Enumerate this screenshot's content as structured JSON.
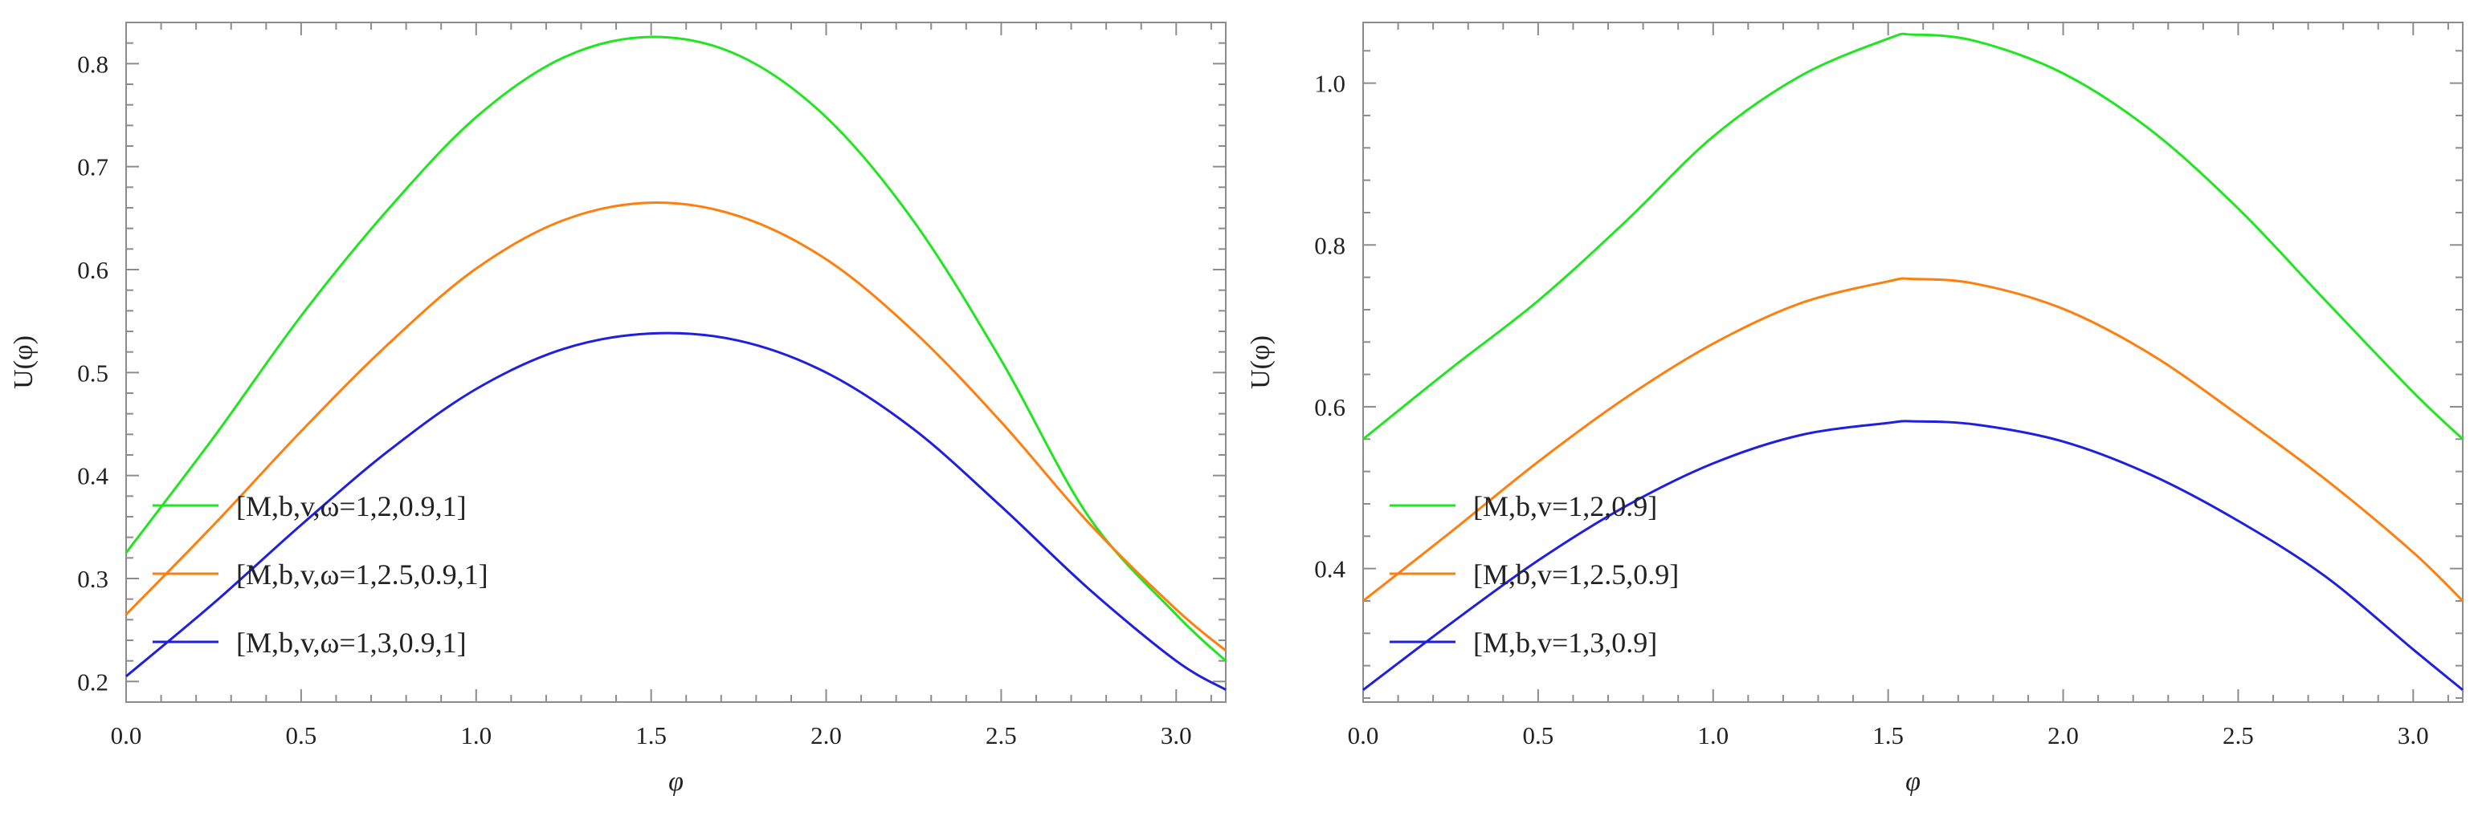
{
  "chart_data": [
    {
      "type": "line",
      "title": "",
      "xlabel": "φ",
      "ylabel": "U(φ)",
      "xlim": [
        0,
        3.14159
      ],
      "ylim": [
        0.18,
        0.84
      ],
      "xticks": [
        0.0,
        0.5,
        1.0,
        1.5,
        2.0,
        2.5,
        3.0
      ],
      "xtick_labels": [
        "0.0",
        "0.5",
        "1.0",
        "1.5",
        "2.0",
        "2.5",
        "3.0"
      ],
      "yticks": [
        0.2,
        0.3,
        0.4,
        0.5,
        0.6,
        0.7,
        0.8
      ],
      "ytick_labels": [
        "0.2",
        "0.3",
        "0.4",
        "0.5",
        "0.6",
        "0.7",
        "0.8"
      ],
      "legend_position": "lower-left",
      "series": [
        {
          "name": "[M,b,v,ω=1,2,0.9,1]",
          "color": "#22e522",
          "x": [
            0.0,
            0.25,
            0.5,
            0.75,
            1.0,
            1.25,
            1.5,
            1.75,
            2.0,
            2.25,
            2.5,
            2.75,
            3.0,
            3.14159
          ],
          "y": [
            0.325,
            0.437,
            0.555,
            0.659,
            0.748,
            0.806,
            0.826,
            0.808,
            0.748,
            0.647,
            0.512,
            0.36,
            0.265,
            0.22
          ]
        },
        {
          "name": "[M,b,v,ω=1,2.5,0.9,1]",
          "color": "#ff7f0e",
          "x": [
            0.0,
            0.25,
            0.5,
            0.75,
            1.0,
            1.25,
            1.5,
            1.75,
            2.0,
            2.25,
            2.5,
            2.75,
            3.0,
            3.14159
          ],
          "y": [
            0.265,
            0.352,
            0.443,
            0.528,
            0.601,
            0.648,
            0.665,
            0.652,
            0.61,
            0.54,
            0.452,
            0.354,
            0.27,
            0.23
          ]
        },
        {
          "name": "[M,b,v,ω=1,3,0.9,1]",
          "color": "#1f1fe0",
          "x": [
            0.0,
            0.25,
            0.5,
            0.75,
            1.0,
            1.25,
            1.5,
            1.75,
            2.0,
            2.25,
            2.5,
            2.75,
            3.0,
            3.14159
          ],
          "y": [
            0.205,
            0.276,
            0.352,
            0.424,
            0.484,
            0.523,
            0.538,
            0.531,
            0.5,
            0.445,
            0.37,
            0.29,
            0.22,
            0.192
          ]
        }
      ]
    },
    {
      "type": "line",
      "title": "",
      "xlabel": "φ",
      "ylabel": "U(φ)",
      "xlim": [
        0,
        3.14159
      ],
      "ylim": [
        0.235,
        1.075
      ],
      "xticks": [
        0.0,
        0.5,
        1.0,
        1.5,
        2.0,
        2.5,
        3.0
      ],
      "xtick_labels": [
        "0.0",
        "0.5",
        "1.0",
        "1.5",
        "2.0",
        "2.5",
        "3.0"
      ],
      "yticks": [
        0.4,
        0.6,
        0.8,
        1.0
      ],
      "ytick_labels": [
        "0.4",
        "0.6",
        "0.8",
        "1.0"
      ],
      "legend_position": "lower-left",
      "series": [
        {
          "name": "[M,b,v=1,2,0.9]",
          "color": "#22e522",
          "x": [
            0.0,
            0.25,
            0.5,
            0.75,
            1.0,
            1.25,
            1.5,
            1.57,
            1.75,
            2.0,
            2.25,
            2.5,
            2.75,
            3.0,
            3.14159
          ],
          "y": [
            0.56,
            0.647,
            0.731,
            0.829,
            0.934,
            1.009,
            1.055,
            1.06,
            1.052,
            1.012,
            0.942,
            0.845,
            0.731,
            0.618,
            0.56
          ]
        },
        {
          "name": "[M,b,v=1,2.5,0.9]",
          "color": "#ff7f0e",
          "x": [
            0.0,
            0.25,
            0.5,
            0.75,
            1.0,
            1.25,
            1.5,
            1.57,
            1.75,
            2.0,
            2.25,
            2.5,
            2.75,
            3.0,
            3.14159
          ],
          "y": [
            0.36,
            0.445,
            0.532,
            0.611,
            0.678,
            0.728,
            0.755,
            0.758,
            0.752,
            0.721,
            0.665,
            0.59,
            0.51,
            0.42,
            0.36
          ]
        },
        {
          "name": "[M,b,v=1,3,0.9]",
          "color": "#1f1fe0",
          "x": [
            0.0,
            0.25,
            0.5,
            0.75,
            1.0,
            1.25,
            1.5,
            1.57,
            1.75,
            2.0,
            2.25,
            2.5,
            2.75,
            3.0,
            3.14159
          ],
          "y": [
            0.25,
            0.332,
            0.41,
            0.477,
            0.53,
            0.565,
            0.58,
            0.582,
            0.578,
            0.557,
            0.516,
            0.459,
            0.39,
            0.3,
            0.25
          ]
        }
      ]
    }
  ]
}
